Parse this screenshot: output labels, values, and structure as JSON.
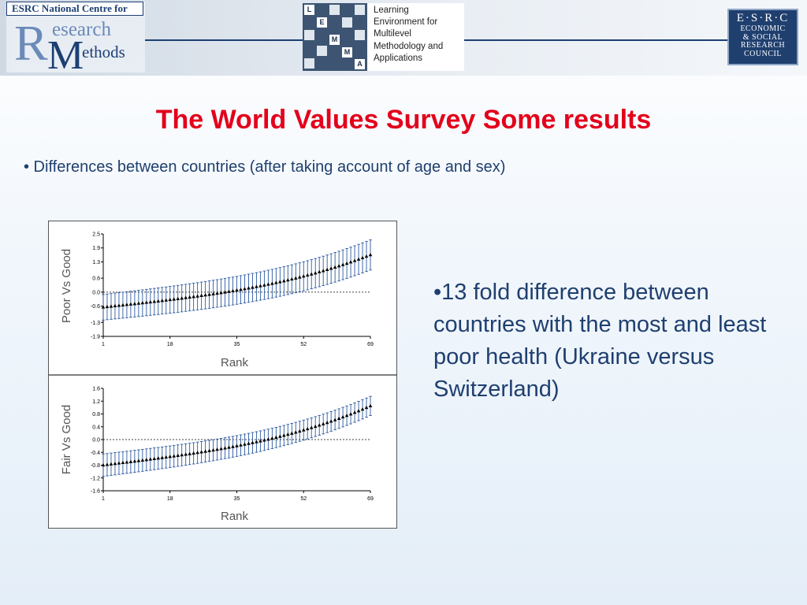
{
  "header": {
    "ncrm_top": "ESRC National Centre for",
    "ncrm_r": "R",
    "ncrm_word1": "esearch",
    "ncrm_m": "M",
    "ncrm_word2": "ethods",
    "lemma_letters": [
      "L",
      "E",
      "M",
      "M",
      "A"
    ],
    "lemma_lines": [
      "Learning",
      "Environment for",
      "Multilevel",
      "Methodology and",
      "Applications"
    ],
    "esrc_top": "E·S·R·C",
    "esrc_lines": [
      "ECONOMIC",
      "& SOCIAL",
      "RESEARCH",
      "COUNCIL"
    ]
  },
  "slide": {
    "title": "The World Values Survey Some results",
    "bullet1": "• Differences between countries (after taking account of age and sex)",
    "bullet2": "•13 fold difference between countries with the most and least poor health (Ukraine versus Switzerland)"
  },
  "chart_data": [
    {
      "type": "scatter",
      "ylabel": "Poor Vs Good",
      "xlabel": "Rank",
      "x_ticks": [
        1,
        18,
        35,
        52,
        69
      ],
      "y_ticks": [
        2.5,
        1.9,
        1.3,
        0.6,
        0.0,
        -0.6,
        -1.3,
        -1.9
      ],
      "ylim": [
        -1.9,
        2.5
      ],
      "xlim": [
        1,
        69
      ],
      "reference_line": 0.0,
      "estimate_start": -0.65,
      "estimate_end": 1.6,
      "interval_start": 0.55,
      "interval_end": 0.65
    },
    {
      "type": "scatter",
      "ylabel": "Fair Vs Good",
      "xlabel": "Rank",
      "x_ticks": [
        1,
        18,
        35,
        52,
        69
      ],
      "y_ticks": [
        1.6,
        1.2,
        0.8,
        0.4,
        0.0,
        -0.4,
        -0.8,
        -1.2,
        -1.6
      ],
      "y_tick_labels": [
        "1.6",
        "1.2",
        "0.8",
        "0.4",
        "0.0",
        "-0.4",
        "-0.8",
        "-1.2",
        "-1.6"
      ],
      "ylim": [
        -1.6,
        1.6
      ],
      "xlim": [
        1,
        69
      ],
      "reference_line": 0.0,
      "estimate_start": -0.8,
      "estimate_end": 1.05,
      "interval_start": 0.35,
      "interval_end": 0.3
    }
  ]
}
